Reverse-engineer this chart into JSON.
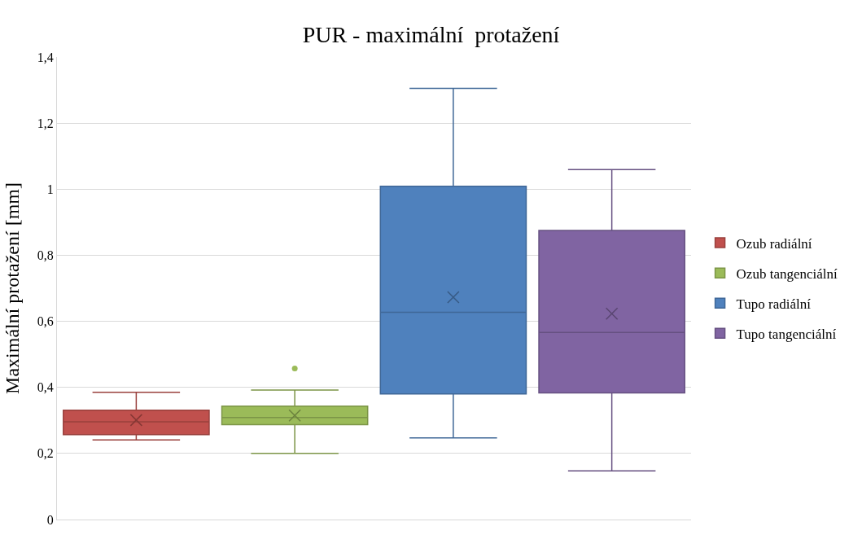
{
  "chart_data": {
    "type": "box",
    "title": "PUR - maximální  protažení",
    "ylabel": "Maximální protažení [mm]",
    "categories": [
      null
    ],
    "series": [
      {
        "name": "Ozub radiální",
        "color": "#c0504d",
        "boxes": [
          {
            "low": 0.241,
            "q1": 0.257,
            "median": 0.296,
            "q3": 0.331,
            "high": 0.385,
            "mean": 0.301
          }
        ]
      },
      {
        "name": "Ozub tangenciální",
        "color": "#9bbb59",
        "boxes": [
          {
            "low": 0.2,
            "q1": 0.287,
            "median": 0.309,
            "q3": 0.343,
            "high": 0.392,
            "mean": 0.315,
            "outliers": [
              0.457
            ]
          }
        ]
      },
      {
        "name": "Tupo radiální",
        "color": "#4f81bd",
        "boxes": [
          {
            "low": 0.247,
            "q1": 0.38,
            "median": 0.627,
            "q3": 1.009,
            "high": 1.305,
            "mean": 0.673
          }
        ]
      },
      {
        "name": "Tupo tangenciální",
        "color": "#8064a2",
        "boxes": [
          {
            "low": 0.147,
            "q1": 0.383,
            "median": 0.566,
            "q3": 0.875,
            "high": 1.059,
            "mean": 0.623
          }
        ]
      }
    ],
    "ylim": [
      0,
      1.4
    ],
    "yticks": [
      {
        "value": 0,
        "label": "0"
      },
      {
        "value": 0.2,
        "label": "0,2"
      },
      {
        "value": 0.4,
        "label": "0,4"
      },
      {
        "value": 0.6,
        "label": "0,6"
      },
      {
        "value": 0.8,
        "label": "0,8"
      },
      {
        "value": 1,
        "label": "1"
      },
      {
        "value": 1.2,
        "label": "1,2"
      },
      {
        "value": 1.4,
        "label": "1,4"
      }
    ],
    "grid": "y",
    "legend": "right",
    "tick_labels": "y"
  }
}
